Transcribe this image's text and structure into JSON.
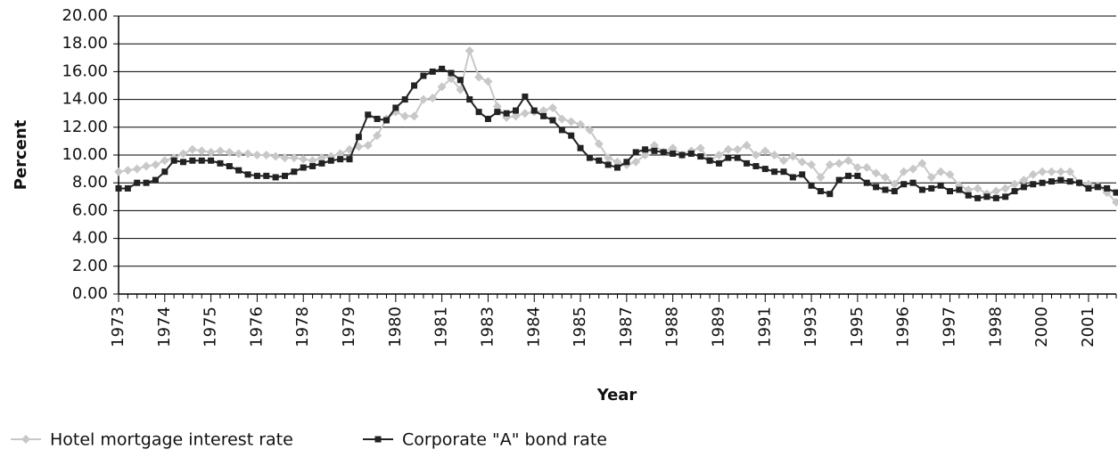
{
  "chart_data": {
    "type": "line",
    "x_label": "Year",
    "y_label": "Percent",
    "categories": [
      "1973",
      null,
      null,
      null,
      null,
      "1974",
      null,
      null,
      null,
      null,
      "1975",
      null,
      null,
      null,
      null,
      "1976",
      null,
      null,
      null,
      null,
      "1978",
      null,
      null,
      null,
      null,
      "1979",
      null,
      null,
      null,
      null,
      "1980",
      null,
      null,
      null,
      null,
      "1981",
      null,
      null,
      null,
      null,
      "1983",
      null,
      null,
      null,
      null,
      "1984",
      null,
      null,
      null,
      null,
      "1985",
      null,
      null,
      null,
      null,
      "1987",
      null,
      null,
      null,
      null,
      "1988",
      null,
      null,
      null,
      null,
      "1989",
      null,
      null,
      null,
      null,
      "1991",
      null,
      null,
      null,
      null,
      "1993",
      null,
      null,
      null,
      null,
      "1995",
      null,
      null,
      null,
      null,
      "1996",
      null,
      null,
      null,
      null,
      "1997",
      null,
      null,
      null,
      null,
      "1998",
      null,
      null,
      null,
      null,
      "2000",
      null,
      null,
      null,
      null,
      "2001",
      null,
      null,
      null
    ],
    "series": [
      {
        "name": "Hotel mortgage interest rate",
        "color": "#c8c8c8",
        "marker": "diamond",
        "values": [
          8.8,
          8.9,
          9.0,
          9.2,
          9.3,
          9.6,
          9.8,
          10.1,
          10.4,
          10.3,
          10.2,
          10.3,
          10.2,
          10.1,
          10.1,
          10.0,
          10.0,
          9.9,
          9.8,
          9.8,
          9.7,
          9.6,
          9.8,
          9.9,
          10.1,
          10.4,
          10.6,
          10.7,
          11.4,
          12.6,
          13.1,
          12.8,
          12.8,
          14.0,
          14.1,
          14.9,
          15.5,
          14.7,
          17.5,
          15.6,
          15.3,
          13.5,
          12.7,
          12.8,
          13.0,
          13.1,
          13.2,
          13.4,
          12.6,
          12.4,
          12.2,
          11.8,
          10.8,
          9.8,
          9.5,
          9.3,
          9.5,
          10.0,
          10.7,
          10.2,
          10.5,
          10.0,
          10.3,
          10.5,
          9.6,
          10.0,
          10.4,
          10.4,
          10.7,
          10.0,
          10.3,
          10.0,
          9.6,
          9.9,
          9.5,
          9.3,
          8.4,
          9.3,
          9.4,
          9.6,
          9.1,
          9.1,
          8.7,
          8.4,
          7.9,
          8.8,
          9.0,
          9.4,
          8.4,
          8.8,
          8.6,
          7.8,
          7.5,
          7.6,
          7.2,
          7.4,
          7.6,
          7.9,
          8.2,
          8.6,
          8.8,
          8.8,
          8.8,
          8.8,
          8.0,
          7.9,
          7.8,
          7.3,
          6.6
        ]
      },
      {
        "name": "Corporate \"A\" bond rate",
        "color": "#222222",
        "marker": "square",
        "values": [
          7.6,
          7.6,
          8.0,
          8.0,
          8.2,
          8.8,
          9.6,
          9.5,
          9.6,
          9.6,
          9.6,
          9.4,
          9.2,
          8.9,
          8.6,
          8.5,
          8.5,
          8.4,
          8.5,
          8.8,
          9.1,
          9.2,
          9.4,
          9.6,
          9.7,
          9.7,
          11.3,
          12.9,
          12.6,
          12.5,
          13.4,
          14.0,
          15.0,
          15.7,
          16.0,
          16.2,
          15.9,
          15.4,
          14.0,
          13.1,
          12.6,
          13.1,
          13.0,
          13.2,
          14.2,
          13.2,
          12.8,
          12.5,
          11.8,
          11.4,
          10.5,
          9.8,
          9.6,
          9.3,
          9.1,
          9.5,
          10.2,
          10.4,
          10.3,
          10.2,
          10.1,
          10.0,
          10.1,
          9.9,
          9.6,
          9.4,
          9.8,
          9.8,
          9.4,
          9.2,
          9.0,
          8.8,
          8.8,
          8.4,
          8.6,
          7.8,
          7.4,
          7.2,
          8.2,
          8.5,
          8.5,
          8.0,
          7.7,
          7.5,
          7.4,
          7.9,
          8.0,
          7.5,
          7.6,
          7.8,
          7.4,
          7.5,
          7.1,
          6.9,
          7.0,
          6.9,
          7.0,
          7.4,
          7.7,
          7.9,
          8.0,
          8.1,
          8.2,
          8.1,
          8.0,
          7.6,
          7.7,
          7.6,
          7.3
        ]
      }
    ],
    "ylim": [
      0,
      20
    ],
    "yticks": [
      {
        "value": 0,
        "label": "0.00"
      },
      {
        "value": 2,
        "label": "2.00"
      },
      {
        "value": 4,
        "label": "4.00"
      },
      {
        "value": 6,
        "label": "6.00"
      },
      {
        "value": 8,
        "label": "8.00"
      },
      {
        "value": 10,
        "label": "10.00"
      },
      {
        "value": 12,
        "label": "12.00"
      },
      {
        "value": 14,
        "label": "14.00"
      },
      {
        "value": 16,
        "label": "16.00"
      },
      {
        "value": 18,
        "label": "18.00"
      },
      {
        "value": 20,
        "label": "20.00"
      }
    ],
    "grid": true,
    "legend": "bottom-left"
  }
}
